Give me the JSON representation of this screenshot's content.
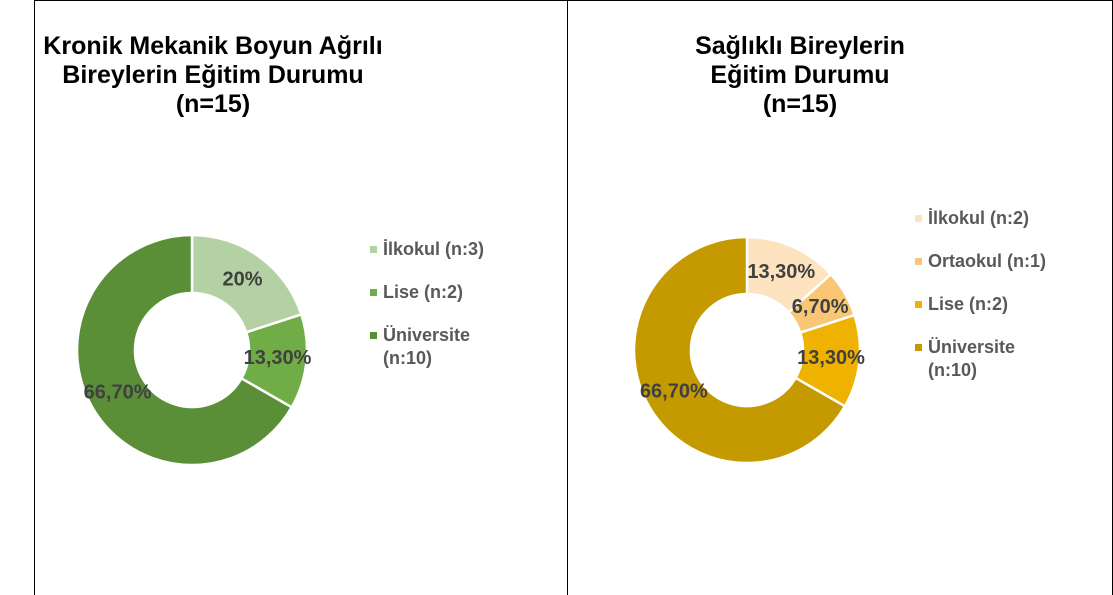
{
  "chart_data": [
    {
      "type": "donut",
      "title": "Kronik Mekanik Boyun Ağrılı\nBireylerin Eğitim Durumu\n(n=15)",
      "categories": [
        "İlkokul (n:3)",
        "Lise (n:2)",
        "Üniversite (n:10)"
      ],
      "values": [
        20,
        13.3,
        66.7
      ],
      "value_labels": [
        "20%",
        "13,30%",
        "66,70%"
      ],
      "colors": [
        "#b4d1a4",
        "#70ad47",
        "#5a8f37"
      ],
      "legend": "right"
    },
    {
      "type": "donut",
      "title": "Sağlıklı Bireylerin\nEğitim Durumu\n(n=15)",
      "categories": [
        "İlkokul (n:2)",
        "Ortaokul (n:1)",
        "Lise (n:2)",
        "Üniversite (n:10)"
      ],
      "values": [
        13.3,
        6.7,
        13.3,
        66.7
      ],
      "value_labels": [
        "13,30%",
        "6,70%",
        "13,30%",
        "66,70%"
      ],
      "colors": [
        "#fde3bf",
        "#f8c674",
        "#efb200",
        "#c49a00"
      ],
      "legend": "right"
    }
  ]
}
